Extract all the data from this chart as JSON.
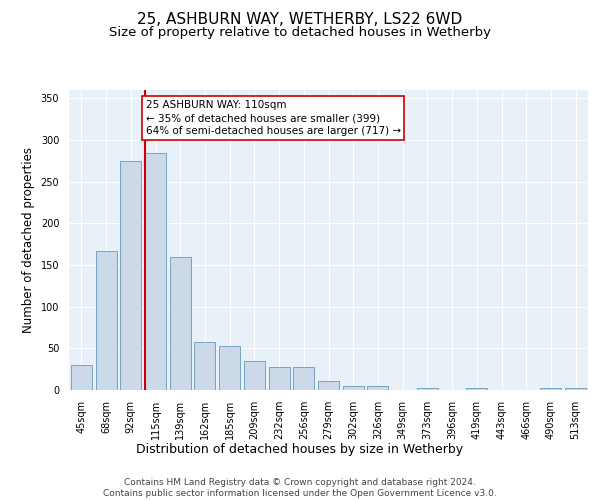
{
  "title1": "25, ASHBURN WAY, WETHERBY, LS22 6WD",
  "title2": "Size of property relative to detached houses in Wetherby",
  "xlabel": "Distribution of detached houses by size in Wetherby",
  "ylabel": "Number of detached properties",
  "categories": [
    "45sqm",
    "68sqm",
    "92sqm",
    "115sqm",
    "139sqm",
    "162sqm",
    "185sqm",
    "209sqm",
    "232sqm",
    "256sqm",
    "279sqm",
    "302sqm",
    "326sqm",
    "349sqm",
    "373sqm",
    "396sqm",
    "419sqm",
    "443sqm",
    "466sqm",
    "490sqm",
    "513sqm"
  ],
  "values": [
    30,
    167,
    275,
    285,
    160,
    58,
    53,
    35,
    28,
    28,
    11,
    5,
    5,
    0,
    3,
    0,
    3,
    0,
    0,
    3,
    3
  ],
  "bar_color": "#ccd9e8",
  "bar_edge_color": "#6699bb",
  "background_color": "#e8f0f8",
  "grid_color": "#ffffff",
  "vline_index": 3,
  "vline_color": "#cc0000",
  "annotation_text": "25 ASHBURN WAY: 110sqm\n← 35% of detached houses are smaller (399)\n64% of semi-detached houses are larger (717) →",
  "annotation_box_facecolor": "#ffffff",
  "annotation_box_edgecolor": "#cc0000",
  "footer_text": "Contains HM Land Registry data © Crown copyright and database right 2024.\nContains public sector information licensed under the Open Government Licence v3.0.",
  "ylim": [
    0,
    360
  ],
  "yticks": [
    0,
    50,
    100,
    150,
    200,
    250,
    300,
    350
  ],
  "title1_fontsize": 11,
  "title2_fontsize": 9.5,
  "xlabel_fontsize": 9,
  "ylabel_fontsize": 8.5,
  "tick_fontsize": 7,
  "annotation_fontsize": 7.5,
  "footer_fontsize": 6.5
}
